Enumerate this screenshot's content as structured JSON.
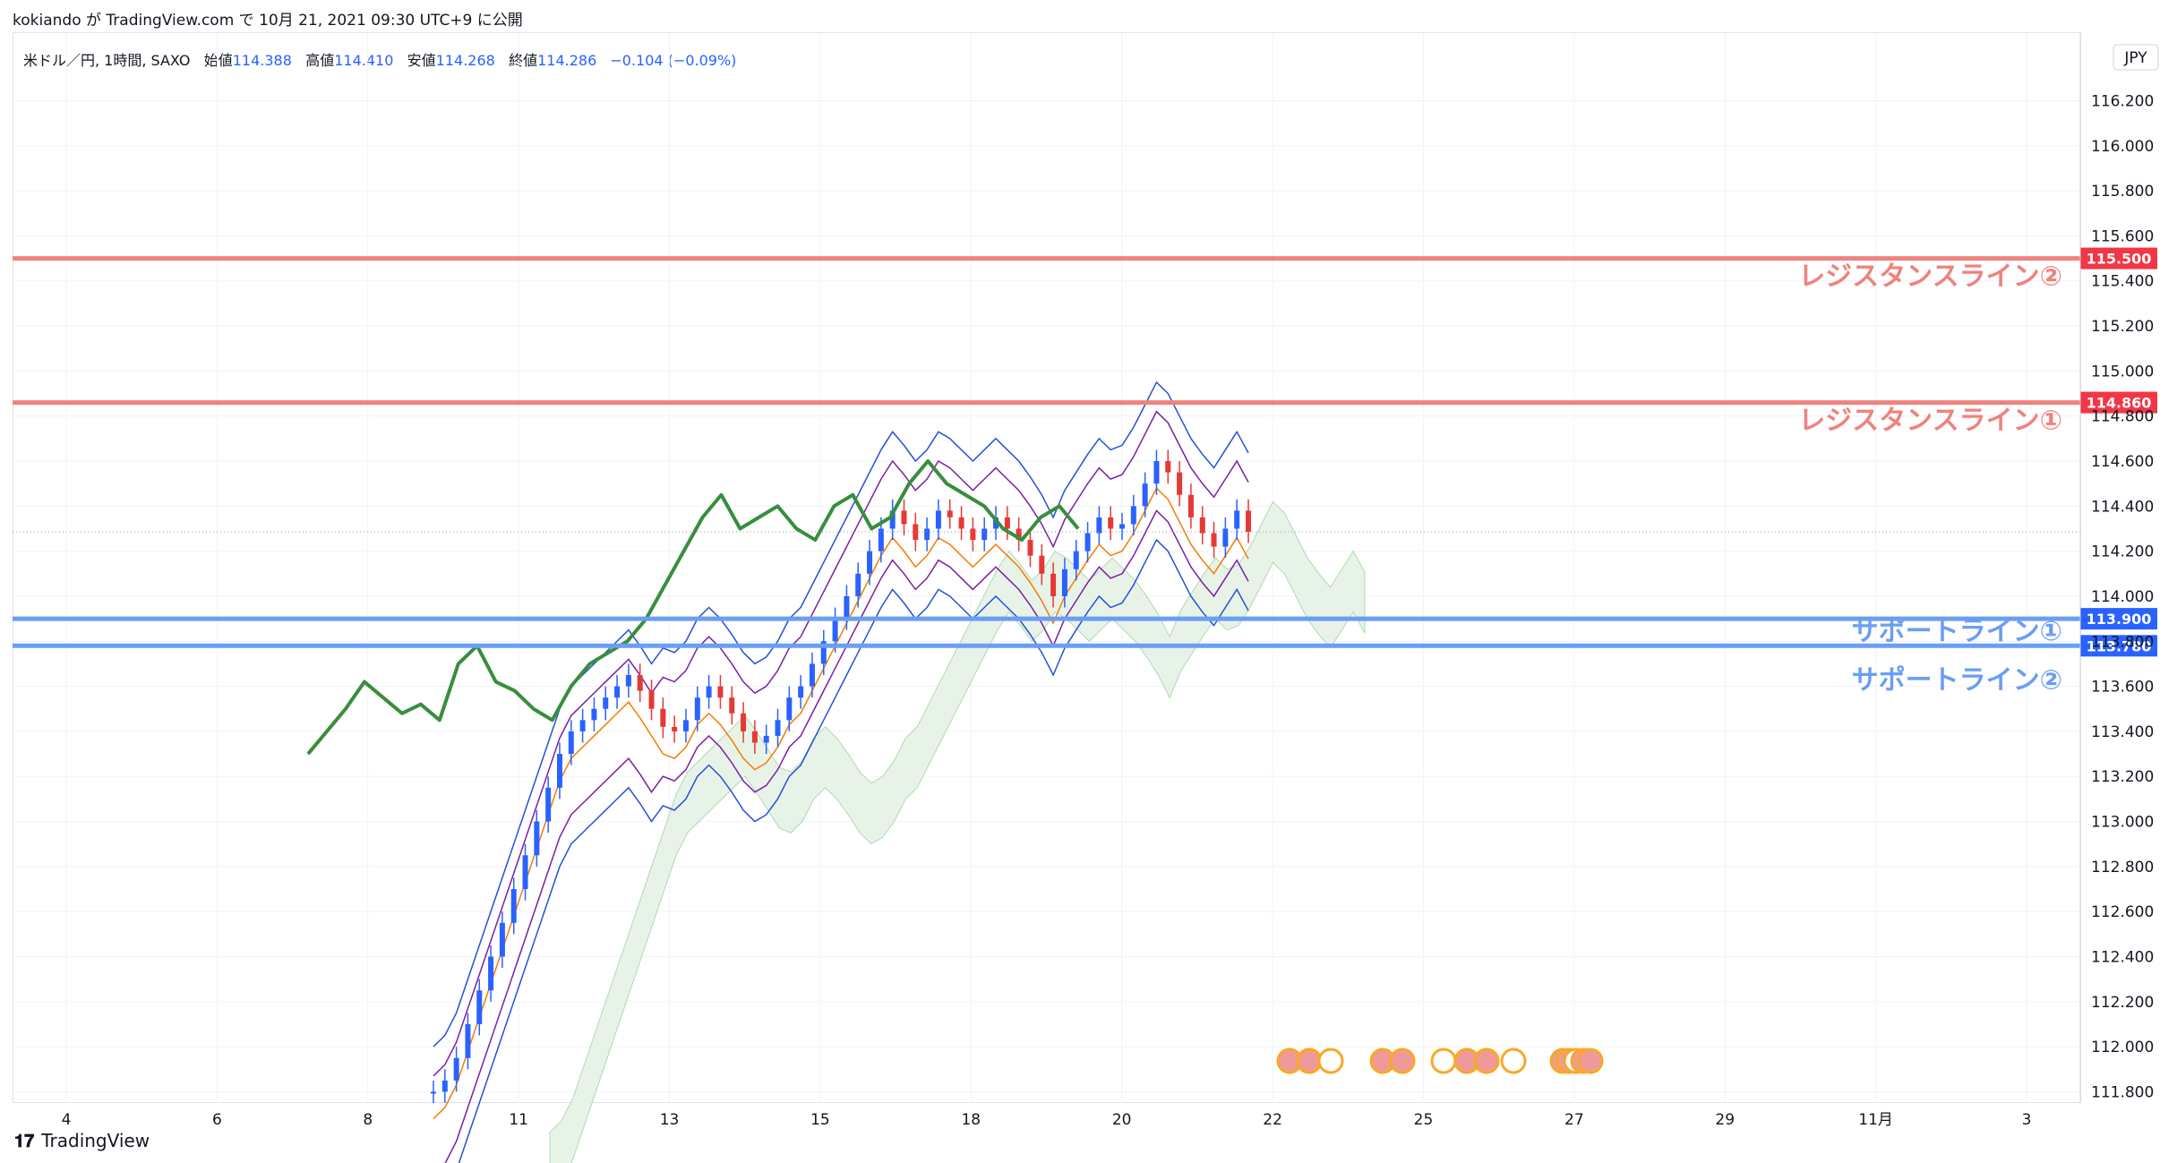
{
  "header": {
    "publish_line": "kokiando が TradingView.com で 10月 21, 2021 09:30 UTC+9 に公開"
  },
  "legend": {
    "symbol": "米ドル／円, 1時間, SAXO",
    "open_label": "始値",
    "open": "114.388",
    "high_label": "高値",
    "high": "114.410",
    "low_label": "安値",
    "low": "114.268",
    "close_label": "終値",
    "close": "114.286",
    "change": "−0.104 (−0.09%)"
  },
  "currency": "JPY",
  "footer": {
    "brand": "TradingView",
    "logo": "tradingview-logo-icon"
  },
  "colors": {
    "resistance": "#f0827d",
    "support": "#6a9ef5",
    "up": "#2962ff",
    "down": "#e53935",
    "chikou": "#388e3c",
    "bollinger": "#2451d6",
    "envelope": "#7b1fa2",
    "ma": "#f57c00",
    "cloud": "#e6f2e6"
  },
  "chart_data": {
    "type": "line",
    "title": "",
    "xlabel": "",
    "ylabel": "",
    "x_ticks": [
      "4",
      "6",
      "8",
      "11",
      "13",
      "15",
      "18",
      "20",
      "22",
      "25",
      "27",
      "29",
      "11月",
      "3"
    ],
    "y_ticks": [
      "111.800",
      "112.000",
      "112.200",
      "112.400",
      "112.600",
      "112.800",
      "113.000",
      "113.200",
      "113.400",
      "113.600",
      "113.800",
      "114.000",
      "114.200",
      "114.400",
      "114.600",
      "114.800",
      "115.000",
      "115.200",
      "115.400",
      "115.600",
      "115.800",
      "116.000",
      "116.200"
    ],
    "ylim": [
      111.75,
      116.5
    ],
    "horizontal_lines": [
      {
        "price": 115.5,
        "tag": "115.500",
        "label": "レジスタンスライン②",
        "kind": "resistance"
      },
      {
        "price": 114.86,
        "tag": "114.860",
        "label": "レジスタンスライン①",
        "kind": "resistance"
      },
      {
        "price": 113.9,
        "tag": "113.900",
        "label": "サポートライン①",
        "kind": "support"
      },
      {
        "price": 113.78,
        "tag": "113.780",
        "label": "サポートライン②",
        "kind": "support"
      }
    ],
    "last_price": 114.286,
    "series": [
      {
        "name": "",
        "role": "price",
        "values": [
          111.8,
          111.85,
          111.95,
          112.1,
          112.25,
          112.4,
          112.55,
          112.7,
          112.85,
          113.0,
          113.15,
          113.3,
          113.4,
          113.45,
          113.5,
          113.55,
          113.6,
          113.65,
          113.58,
          113.5,
          113.42,
          113.4,
          113.45,
          113.55,
          113.6,
          113.55,
          113.48,
          113.4,
          113.35,
          113.38,
          113.45,
          113.55,
          113.6,
          113.7,
          113.8,
          113.9,
          114.0,
          114.1,
          114.2,
          114.3,
          114.38,
          114.32,
          114.25,
          114.3,
          114.38,
          114.35,
          114.3,
          114.25,
          114.3,
          114.35,
          114.3,
          114.25,
          114.18,
          114.1,
          114.0,
          114.12,
          114.2,
          114.28,
          114.35,
          114.3,
          114.32,
          114.4,
          114.5,
          114.6,
          114.55,
          114.45,
          114.35,
          114.28,
          114.22,
          114.3,
          114.38,
          114.286
        ]
      },
      {
        "name": "",
        "role": "chikou",
        "values": [
          113.3,
          113.4,
          113.5,
          113.62,
          113.55,
          113.48,
          113.52,
          113.45,
          113.7,
          113.78,
          113.62,
          113.58,
          113.5,
          113.45,
          113.6,
          113.7,
          113.75,
          113.8,
          113.9,
          114.05,
          114.2,
          114.35,
          114.45,
          114.3,
          114.35,
          114.4,
          114.3,
          114.25,
          114.4,
          114.45,
          114.3,
          114.35,
          114.5,
          114.6,
          114.5,
          114.45,
          114.4,
          114.3,
          114.25,
          114.35,
          114.4,
          114.3
        ]
      }
    ]
  }
}
